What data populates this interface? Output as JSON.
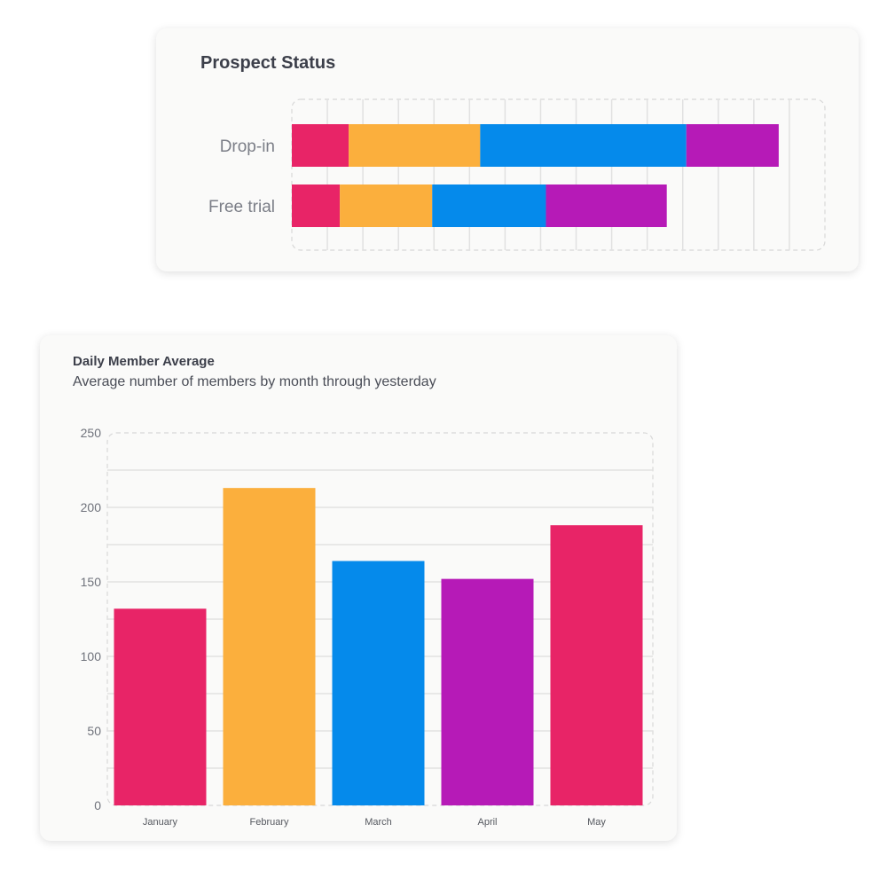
{
  "prospect_status": {
    "title": "Prospect Status",
    "colors": [
      "#e82467",
      "#fbaf3d",
      "#058aeb",
      "#b61ab7"
    ],
    "chart_data": {
      "type": "bar",
      "orientation": "horizontal",
      "stacked": true,
      "categories": [
        "Drop-in",
        "Free trial"
      ],
      "series": [
        {
          "values": [
            32,
            27
          ]
        },
        {
          "values": [
            74,
            52
          ]
        },
        {
          "values": [
            116,
            64
          ]
        },
        {
          "values": [
            52,
            68
          ]
        }
      ],
      "xlim": [
        0,
        300
      ],
      "grid": true
    }
  },
  "daily_member_average": {
    "title": "Daily Member Average",
    "subtitle": "Average number of members by month through yesterday",
    "chart_data": {
      "type": "bar",
      "categories": [
        "January",
        "February",
        "March",
        "April",
        "May"
      ],
      "values": [
        132,
        213,
        164,
        152,
        188
      ],
      "colors": [
        "#e82467",
        "#fbaf3d",
        "#058aeb",
        "#b61ab7",
        "#e82467"
      ],
      "yticks": [
        0,
        50,
        100,
        150,
        200,
        250
      ],
      "ylim": [
        0,
        250
      ],
      "grid": true
    }
  }
}
